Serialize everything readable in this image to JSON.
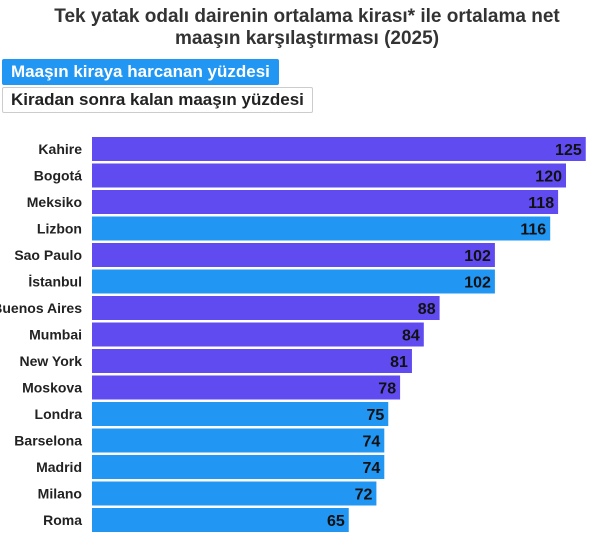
{
  "title": "Tek yatak odalı dairenin ortalama kirası* ile ortalama net\nmaaşın karşılaştırması (2025)",
  "toggles": {
    "active": "Maaşın kiraya harcanan yüzdesi",
    "inactive": "Kiradan sonra kalan maaşın yüzdesi"
  },
  "colors": {
    "purple": "#5f4bf0",
    "blue": "#2196f3"
  },
  "chart_data": {
    "type": "bar",
    "orientation": "horizontal",
    "categories": [
      "Kahire",
      "Bogotá",
      "Meksiko",
      "Lizbon",
      "Sao Paulo",
      "İstanbul",
      "Buenos Aires",
      "Mumbai",
      "New York",
      "Moskova",
      "Londra",
      "Barselona",
      "Madrid",
      "Milano",
      "Roma"
    ],
    "values": [
      125,
      120,
      118,
      116,
      102,
      102,
      88,
      84,
      81,
      78,
      75,
      74,
      74,
      72,
      65
    ],
    "bar_colors": [
      "purple",
      "purple",
      "purple",
      "blue",
      "purple",
      "blue",
      "purple",
      "purple",
      "purple",
      "purple",
      "blue",
      "blue",
      "blue",
      "blue",
      "blue"
    ],
    "xlim": [
      0,
      140
    ],
    "grid": false,
    "legend": false
  }
}
